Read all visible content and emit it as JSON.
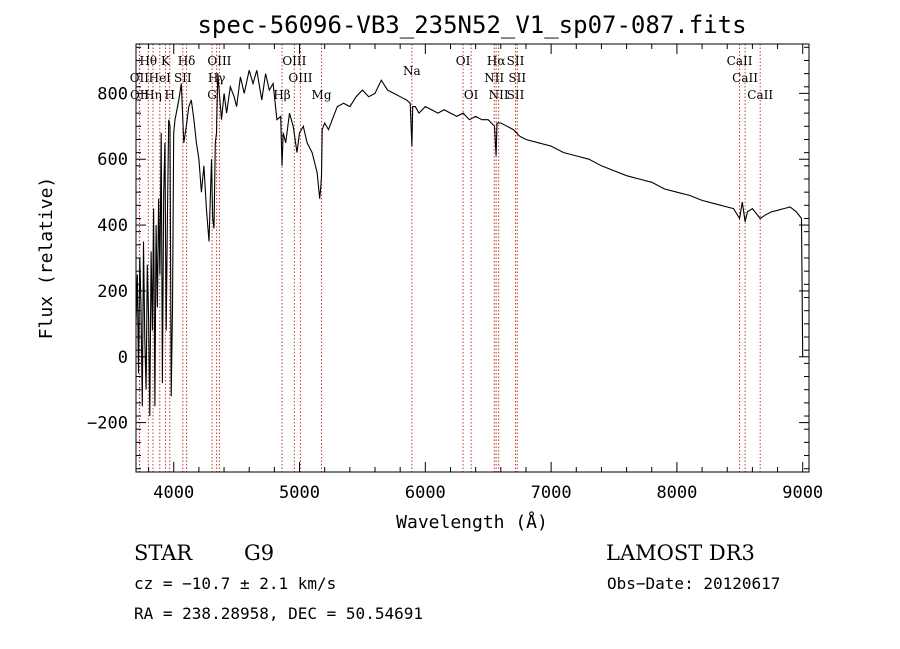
{
  "chart_data": {
    "type": "line",
    "title": "spec-56096-VB3_235N52_V1_sp07-087.fits",
    "xlabel": "Wavelength (Å)",
    "ylabel": "Flux (relative)",
    "xlim": [
      3700,
      9050
    ],
    "ylim": [
      -350,
      950
    ],
    "x_ticks": [
      4000,
      5000,
      6000,
      7000,
      8000,
      9000
    ],
    "x_tick_labels": [
      "4000",
      "5000",
      "6000",
      "7000",
      "8000",
      "9000"
    ],
    "y_ticks": [
      -200,
      0,
      200,
      400,
      600,
      800
    ],
    "y_tick_labels": [
      "−200",
      "0",
      "200",
      "400",
      "600",
      "800"
    ],
    "grid": false,
    "series": [
      {
        "name": "flux",
        "x": [
          3700,
          3710,
          3720,
          3730,
          3740,
          3750,
          3760,
          3770,
          3780,
          3790,
          3800,
          3810,
          3820,
          3830,
          3840,
          3850,
          3860,
          3870,
          3880,
          3890,
          3900,
          3910,
          3920,
          3930,
          3940,
          3950,
          3960,
          3970,
          3980,
          3990,
          4000,
          4010,
          4020,
          4040,
          4060,
          4080,
          4100,
          4120,
          4140,
          4160,
          4180,
          4200,
          4220,
          4240,
          4260,
          4280,
          4300,
          4310,
          4320,
          4330,
          4340,
          4350,
          4380,
          4400,
          4420,
          4450,
          4480,
          4500,
          4530,
          4560,
          4600,
          4630,
          4660,
          4700,
          4730,
          4760,
          4790,
          4820,
          4850,
          4861,
          4870,
          4890,
          4920,
          4950,
          4980,
          5000,
          5030,
          5060,
          5100,
          5140,
          5160,
          5170,
          5175,
          5180,
          5200,
          5230,
          5270,
          5300,
          5350,
          5400,
          5450,
          5500,
          5550,
          5600,
          5650,
          5700,
          5750,
          5800,
          5850,
          5880,
          5893,
          5900,
          5920,
          5950,
          6000,
          6050,
          6100,
          6150,
          6200,
          6250,
          6300,
          6350,
          6400,
          6450,
          6500,
          6550,
          6563,
          6570,
          6600,
          6650,
          6700,
          6750,
          6800,
          6900,
          7000,
          7100,
          7200,
          7300,
          7400,
          7500,
          7600,
          7700,
          7800,
          7900,
          8000,
          8100,
          8200,
          8300,
          8400,
          8450,
          8498,
          8520,
          8542,
          8560,
          8600,
          8662,
          8700,
          8750,
          8800,
          8850,
          8900,
          8950,
          8990,
          9000
        ],
        "y": [
          100,
          250,
          -50,
          300,
          150,
          -150,
          350,
          50,
          -100,
          280,
          120,
          -180,
          320,
          80,
          450,
          -150,
          400,
          150,
          480,
          250,
          680,
          -80,
          500,
          650,
          80,
          420,
          720,
          700,
          -120,
          150,
          680,
          720,
          740,
          780,
          830,
          650,
          700,
          760,
          780,
          720,
          650,
          600,
          500,
          580,
          450,
          350,
          600,
          420,
          390,
          650,
          680,
          860,
          720,
          800,
          740,
          820,
          790,
          760,
          850,
          800,
          870,
          830,
          870,
          780,
          860,
          810,
          830,
          720,
          730,
          580,
          680,
          650,
          740,
          700,
          620,
          680,
          700,
          650,
          620,
          560,
          480,
          520,
          550,
          690,
          710,
          690,
          730,
          760,
          770,
          760,
          790,
          810,
          790,
          800,
          840,
          810,
          800,
          790,
          780,
          770,
          640,
          760,
          760,
          740,
          760,
          750,
          740,
          750,
          740,
          730,
          740,
          720,
          730,
          720,
          720,
          700,
          610,
          710,
          710,
          700,
          690,
          670,
          660,
          650,
          640,
          620,
          610,
          600,
          580,
          565,
          550,
          540,
          530,
          510,
          500,
          490,
          475,
          465,
          455,
          450,
          420,
          470,
          410,
          440,
          450,
          420,
          430,
          440,
          445,
          450,
          455,
          440,
          420,
          0
        ]
      }
    ],
    "lines": [
      {
        "label": "Hθ",
        "x": 3798,
        "row": 1
      },
      {
        "label": "K",
        "x": 3934,
        "row": 1
      },
      {
        "label": "Hδ",
        "x": 4102,
        "row": 1
      },
      {
        "label": "OIII",
        "x": 4363,
        "row": 1
      },
      {
        "label": "OIII",
        "x": 4959,
        "row": 1
      },
      {
        "label": "OI",
        "x": 6300,
        "row": 1
      },
      {
        "label": "Hα",
        "x": 6563,
        "row": 1
      },
      {
        "label": "SII",
        "x": 6717,
        "row": 1
      },
      {
        "label": "CaII",
        "x": 8498,
        "row": 1
      },
      {
        "label": "OII",
        "x": 3727,
        "row": 2
      },
      {
        "label": "HeI",
        "x": 3889,
        "row": 2
      },
      {
        "label": "SII",
        "x": 4072,
        "row": 2
      },
      {
        "label": "Hγ",
        "x": 4341,
        "row": 2
      },
      {
        "label": "OIII",
        "x": 5007,
        "row": 2
      },
      {
        "label": "NII",
        "x": 6548,
        "row": 2
      },
      {
        "label": "SII",
        "x": 6731,
        "row": 2
      },
      {
        "label": "CaII",
        "x": 8542,
        "row": 2
      },
      {
        "label": "OII",
        "x": 3729,
        "row": 3
      },
      {
        "label": "Hη",
        "x": 3835,
        "row": 3
      },
      {
        "label": "H",
        "x": 3968,
        "row": 3
      },
      {
        "label": "G",
        "x": 4305,
        "row": 3
      },
      {
        "label": "Hβ",
        "x": 4861,
        "row": 3
      },
      {
        "label": "Mg",
        "x": 5175,
        "row": 3
      },
      {
        "label": "Na",
        "x": 5893,
        "row": 1.6
      },
      {
        "label": "OI",
        "x": 6364,
        "row": 3
      },
      {
        "label": "NII",
        "x": 6583,
        "row": 3
      },
      {
        "label": "SII",
        "x": 6717,
        "row": 3
      },
      {
        "label": "CaII",
        "x": 8662,
        "row": 3
      }
    ]
  },
  "info": {
    "class_label": "STAR",
    "subclass": "G9",
    "survey": "LAMOST DR3",
    "cz": "cz = −10.7 ± 2.1 km/s",
    "obs_date": "Obs−Date: 20120617",
    "coords": "RA = 238.28958, DEC =  50.54691"
  }
}
